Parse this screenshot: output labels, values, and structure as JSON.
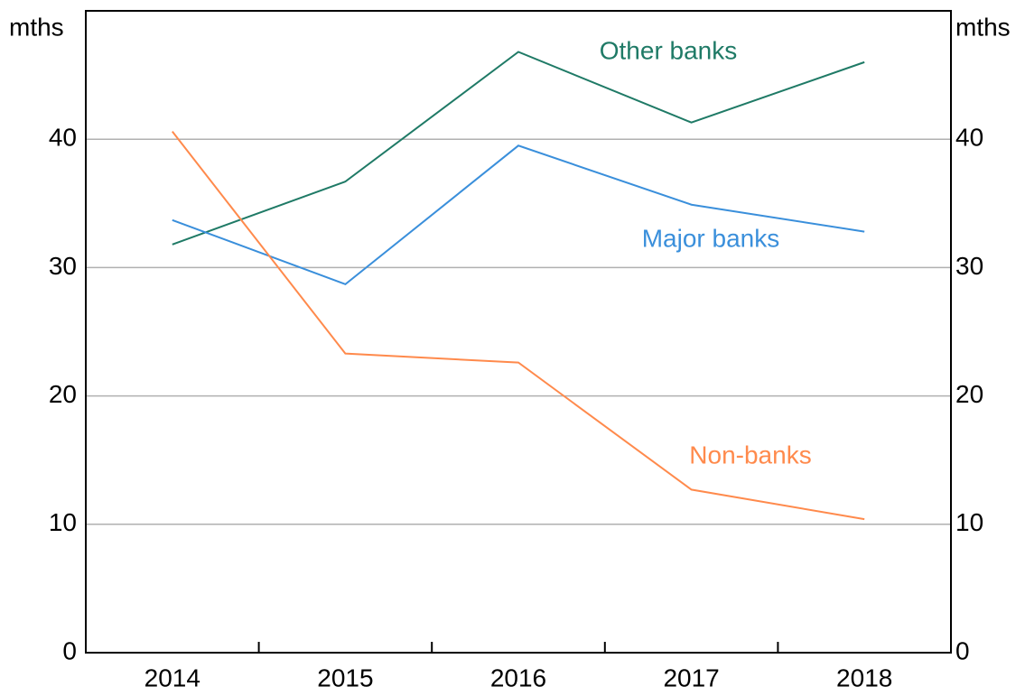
{
  "chart_data": {
    "type": "line",
    "y_unit": "mths",
    "y2_unit": "mths",
    "categories": [
      "2014",
      "2015",
      "2016",
      "2017",
      "2018"
    ],
    "series": [
      {
        "name": "Other banks",
        "color": "#1f7a66",
        "values": [
          31.8,
          36.7,
          46.8,
          41.3,
          46.0
        ]
      },
      {
        "name": "Major banks",
        "color": "#3a8fdb",
        "values": [
          33.7,
          28.7,
          39.5,
          34.9,
          32.8
        ]
      },
      {
        "name": "Non-banks",
        "color": "#ff8a4c",
        "values": [
          40.6,
          23.3,
          22.6,
          12.7,
          10.4
        ]
      }
    ],
    "ylim": [
      0,
      50
    ],
    "yticks": [
      0,
      10,
      20,
      30,
      40
    ],
    "y2lim": [
      0,
      50
    ],
    "y2ticks": [
      0,
      10,
      20,
      30,
      40
    ],
    "grid": true
  }
}
